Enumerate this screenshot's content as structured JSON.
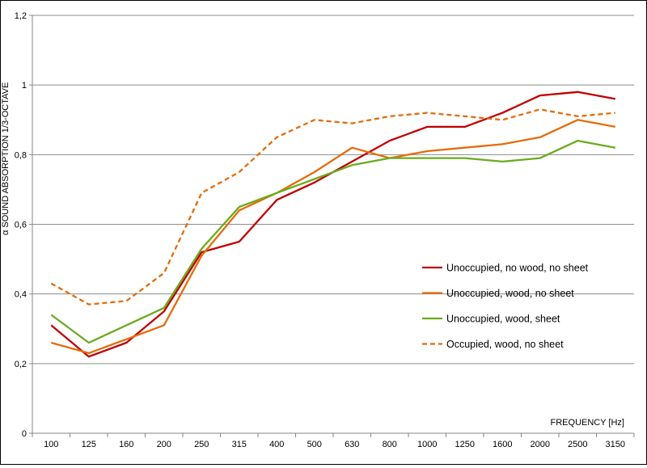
{
  "chart_data": {
    "type": "line",
    "title": "",
    "xlabel": "FREQUENCY [Hz]",
    "ylabel": "α  SOUND ABSORPTION 1/3-OCTAVE",
    "categories": [
      "100",
      "125",
      "160",
      "200",
      "250",
      "315",
      "400",
      "500",
      "630",
      "800",
      "1000",
      "1250",
      "1600",
      "2000",
      "2500",
      "3150"
    ],
    "ylim": [
      0,
      1.2
    ],
    "yticks": [
      "0",
      "0,2",
      "0,4",
      "0,6",
      "0,8",
      "1",
      "1,2"
    ],
    "ytick_values": [
      0,
      0.2,
      0.4,
      0.6,
      0.8,
      1.0,
      1.2
    ],
    "grid": "horizontal",
    "legend_position": "right",
    "series": [
      {
        "name": "Unoccupied, no wood, no sheet",
        "color": "#c00000",
        "dashed": false,
        "values": [
          0.31,
          0.22,
          0.26,
          0.35,
          0.52,
          0.55,
          0.67,
          0.72,
          0.78,
          0.84,
          0.88,
          0.88,
          0.92,
          0.97,
          0.98,
          0.96
        ]
      },
      {
        "name": "Unoccupied, wood, no sheet",
        "color": "#e46c0a",
        "dashed": false,
        "values": [
          0.26,
          0.23,
          0.27,
          0.31,
          0.51,
          0.64,
          0.69,
          0.75,
          0.82,
          0.79,
          0.81,
          0.82,
          0.83,
          0.85,
          0.9,
          0.88
        ]
      },
      {
        "name": "Unoccupied, wood, sheet",
        "color": "#6aab1e",
        "dashed": false,
        "values": [
          0.34,
          0.26,
          0.31,
          0.36,
          0.53,
          0.65,
          0.69,
          0.73,
          0.77,
          0.79,
          0.79,
          0.79,
          0.78,
          0.79,
          0.84,
          0.82
        ]
      },
      {
        "name": "Occupied, wood, no sheet",
        "color": "#e46c0a",
        "dashed": true,
        "values": [
          0.43,
          0.37,
          0.38,
          0.46,
          0.69,
          0.75,
          0.85,
          0.9,
          0.89,
          0.91,
          0.92,
          0.91,
          0.9,
          0.93,
          0.91,
          0.92
        ]
      }
    ]
  }
}
